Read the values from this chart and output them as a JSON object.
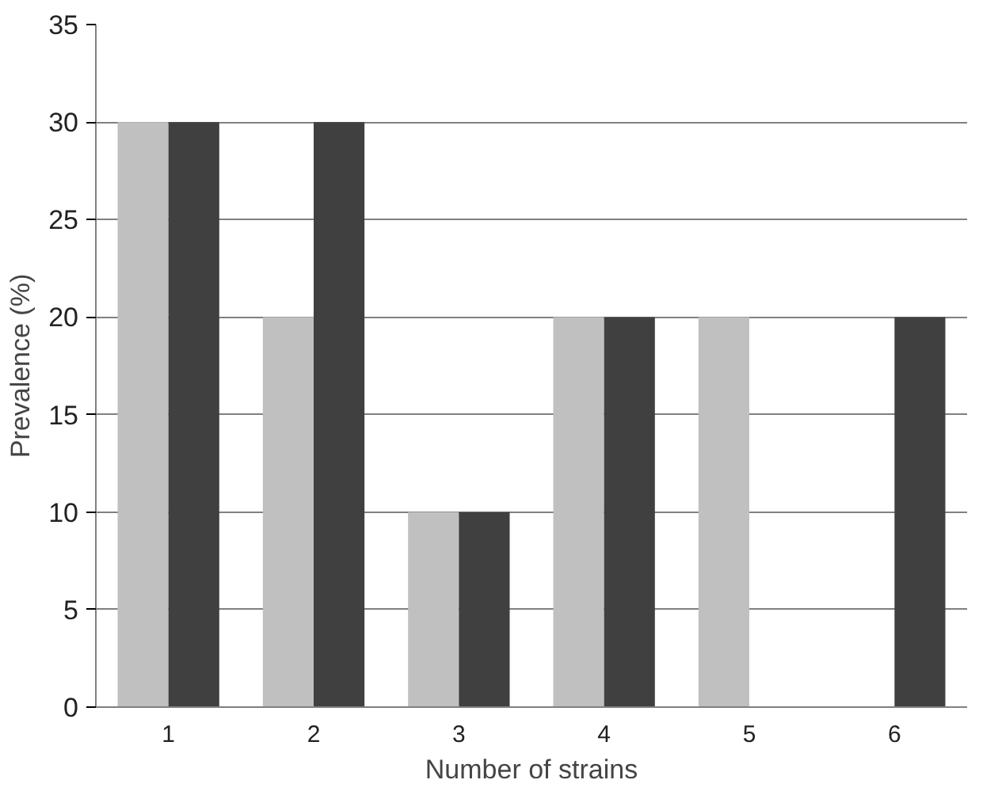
{
  "chart_data": {
    "type": "bar",
    "xlabel": "Number of strains",
    "ylabel": "Prevalence (%)",
    "categories": [
      "1",
      "2",
      "3",
      "4",
      "5",
      "6"
    ],
    "series": [
      {
        "color": "#c0c0c0",
        "values": [
          30,
          20,
          10,
          20,
          20,
          0
        ]
      },
      {
        "color": "#404040",
        "values": [
          30,
          30,
          10,
          20,
          0,
          20
        ]
      }
    ],
    "ylim": [
      0,
      35
    ],
    "yticks": [
      0,
      5,
      10,
      15,
      20,
      25,
      30,
      35
    ],
    "grid": "y"
  }
}
